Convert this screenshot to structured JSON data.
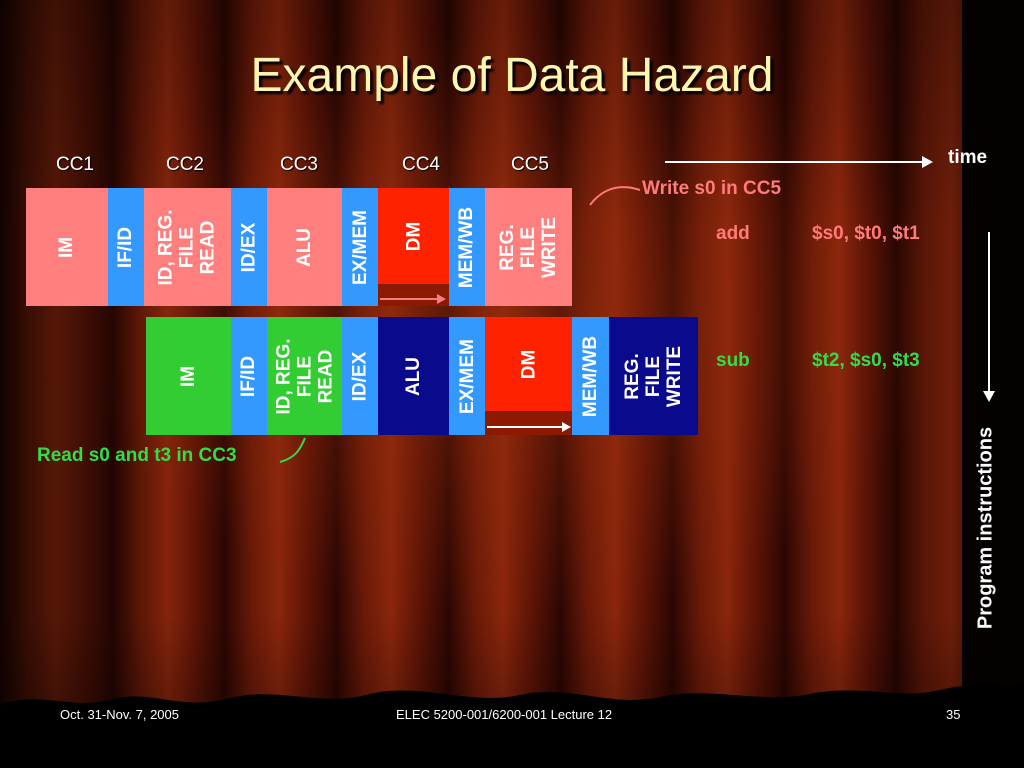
{
  "title": "Example of Data Hazard",
  "clock_cycles": [
    "CC1",
    "CC2",
    "CC3",
    "CC4",
    "CC5"
  ],
  "time_label": "time",
  "program_label": "Program instructions",
  "notes": {
    "write": "Write s0 in CC5",
    "read": "Read s0 and t3 in CC3"
  },
  "instructions": [
    {
      "op": "add",
      "operands": "$s0, $t0, $t1"
    },
    {
      "op": "sub",
      "operands": "$t2, $s0, $t3"
    }
  ],
  "pipeline_rows": [
    {
      "stages": [
        "IM",
        "IF/ID",
        "ID, REG.\nFILE\nREAD",
        "ID/EX",
        "ALU",
        "EX/MEM",
        "DM",
        "MEM/WB",
        "REG.\nFILE\nWRITE"
      ]
    },
    {
      "stages": [
        "IM",
        "IF/ID",
        "ID, REG.\nFILE\nREAD",
        "ID/EX",
        "ALU",
        "EX/MEM",
        "DM",
        "MEM/WB",
        "REG.\nFILE\nWRITE"
      ]
    }
  ],
  "footer": {
    "date": "Oct. 31-Nov. 7, 2005",
    "course": "ELEC 5200-001/6200-001 Lecture 12",
    "page": "35"
  },
  "colors": {
    "title": "#fff6b0",
    "pink": "#ff7f7f",
    "blue_register": "#3399ff",
    "green": "#33cc33",
    "navy": "#0a0a8c",
    "red": "#ff2200",
    "dark_red": "#8b1a00",
    "add_color": "#ff7a7a",
    "sub_color": "#33dd44"
  }
}
